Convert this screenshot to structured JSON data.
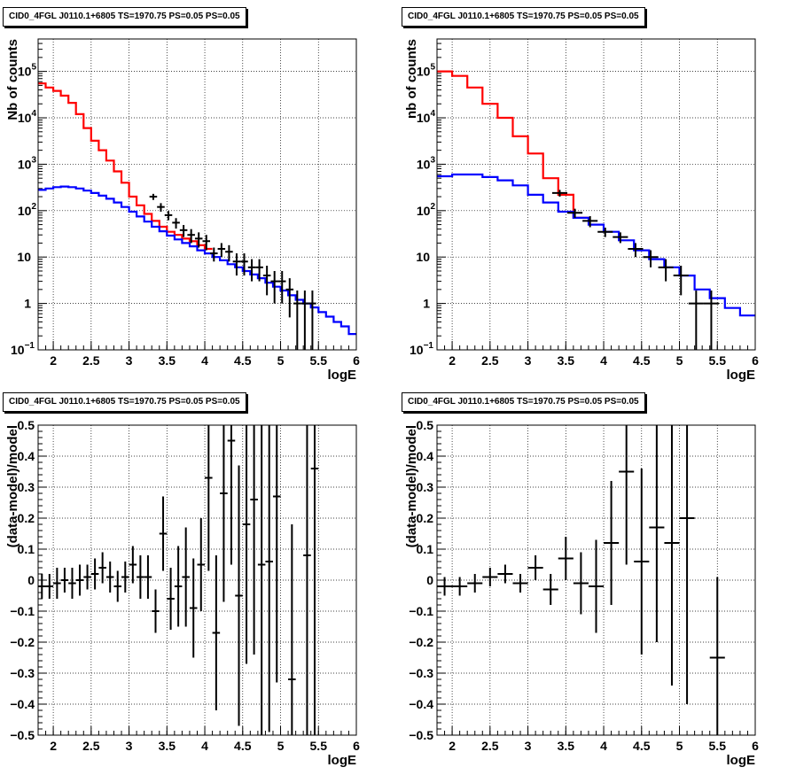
{
  "page": {
    "background": "#ffffff"
  },
  "colors": {
    "data": "#000000",
    "model_total": "#ff0000",
    "model_bkg": "#0000ff",
    "grid": "#000000"
  },
  "chart_data": [
    {
      "type": "line",
      "title": "CID0_4FGL J0110.1+6805 TS=1970.75 PS=0.05 PS=0.05",
      "xlabel": "logE",
      "ylabel": "Nb of counts",
      "yscale": "log",
      "xlim": [
        1.8,
        6.0
      ],
      "ylim": [
        0.1,
        500000
      ],
      "xticks": [
        "2",
        "2.5",
        "3",
        "3.5",
        "4",
        "4.5",
        "5",
        "5.5",
        "6"
      ],
      "yticks": [
        {
          "v": 0.1,
          "base": "10",
          "exp": "−1"
        },
        {
          "v": 1,
          "base": "1",
          "exp": ""
        },
        {
          "v": 10,
          "base": "10",
          "exp": ""
        },
        {
          "v": 100,
          "base": "10",
          "exp": "2"
        },
        {
          "v": 1000,
          "base": "10",
          "exp": "3"
        },
        {
          "v": 10000,
          "base": "10",
          "exp": "4"
        },
        {
          "v": 100000,
          "base": "10",
          "exp": "5"
        }
      ],
      "grid": true,
      "bin_width": 0.1,
      "series": [
        {
          "role": "model_total",
          "x": [
            1.8,
            1.9,
            2.0,
            2.1,
            2.2,
            2.3,
            2.4,
            2.5,
            2.6,
            2.7,
            2.8,
            2.9,
            3.0,
            3.1,
            3.2,
            3.3,
            3.4,
            3.5,
            3.6,
            3.7,
            3.8,
            3.9,
            4.0
          ],
          "values": [
            55000,
            45000,
            38000,
            30000,
            21000,
            12000,
            6000,
            3200,
            2000,
            1200,
            700,
            400,
            200,
            130,
            85,
            60,
            45,
            35,
            30,
            25,
            22,
            18,
            15
          ]
        },
        {
          "role": "model_bkg",
          "x": [
            1.8,
            1.9,
            2.0,
            2.1,
            2.2,
            2.3,
            2.4,
            2.5,
            2.6,
            2.7,
            2.8,
            2.9,
            3.0,
            3.1,
            3.2,
            3.3,
            3.4,
            3.5,
            3.6,
            3.7,
            3.8,
            3.9,
            4.0,
            4.1,
            4.2,
            4.3,
            4.4,
            4.5,
            4.6,
            4.7,
            4.8,
            4.9,
            5.0,
            5.1,
            5.2,
            5.3,
            5.4,
            5.5,
            5.6,
            5.7,
            5.8,
            5.9
          ],
          "values": [
            280,
            300,
            320,
            330,
            320,
            300,
            270,
            240,
            210,
            180,
            150,
            120,
            95,
            75,
            58,
            45,
            36,
            29,
            24,
            20,
            17,
            14,
            12,
            10,
            8.5,
            7,
            6,
            5,
            4.2,
            3.5,
            2.8,
            2.3,
            1.9,
            1.5,
            1.2,
            1.0,
            0.82,
            0.65,
            0.52,
            0.4,
            0.32,
            0.22
          ]
        }
      ],
      "points": {
        "x": [
          3.32,
          3.42,
          3.52,
          3.62,
          3.72,
          3.82,
          3.92,
          4.02,
          4.12,
          4.22,
          4.32,
          4.42,
          4.52,
          4.62,
          4.72,
          4.82,
          4.92,
          5.02,
          5.12,
          5.22,
          5.32,
          5.42
        ],
        "y": [
          200,
          120,
          80,
          55,
          38,
          30,
          25,
          22,
          12,
          15,
          13,
          8,
          8,
          6,
          6,
          4,
          3,
          3,
          2,
          1,
          1,
          1
        ],
        "err_lo": [
          30,
          25,
          18,
          14,
          11,
          10,
          9,
          8,
          4,
          5,
          5,
          4,
          4,
          3,
          3,
          2.5,
          2,
          2,
          1.5,
          0.9,
          0.9,
          0.9
        ],
        "err_hi": [
          30,
          25,
          18,
          14,
          11,
          10,
          9,
          8,
          4,
          5,
          5,
          4,
          4,
          3,
          3,
          2.5,
          2,
          2,
          1.5,
          0.9,
          0.9,
          0.9
        ]
      }
    },
    {
      "type": "line",
      "title": "CID0_4FGL J0110.1+6805 TS=1970.75 PS=0.05 PS=0.05",
      "xlabel": "logE",
      "ylabel": "nb of counts",
      "yscale": "log",
      "xlim": [
        1.8,
        6.0
      ],
      "ylim": [
        0.1,
        500000
      ],
      "xticks": [
        "2",
        "2.5",
        "3",
        "3.5",
        "4",
        "4.5",
        "5",
        "5.5",
        "6"
      ],
      "yticks": [
        {
          "v": 0.1,
          "base": "10",
          "exp": "−1"
        },
        {
          "v": 1,
          "base": "1",
          "exp": ""
        },
        {
          "v": 10,
          "base": "10",
          "exp": ""
        },
        {
          "v": 100,
          "base": "10",
          "exp": "2"
        },
        {
          "v": 1000,
          "base": "10",
          "exp": "3"
        },
        {
          "v": 10000,
          "base": "10",
          "exp": "4"
        },
        {
          "v": 100000,
          "base": "10",
          "exp": "5"
        }
      ],
      "grid": true,
      "bin_width": 0.2,
      "series": [
        {
          "role": "model_total",
          "x": [
            1.8,
            2.0,
            2.2,
            2.4,
            2.6,
            2.8,
            3.0,
            3.2,
            3.4,
            3.6
          ],
          "values": [
            100000,
            80000,
            45000,
            20000,
            10000,
            4000,
            1700,
            500,
            220,
            70
          ]
        },
        {
          "role": "model_bkg",
          "x": [
            1.8,
            2.0,
            2.2,
            2.4,
            2.6,
            2.8,
            3.0,
            3.2,
            3.4,
            3.6,
            3.8,
            4.0,
            4.2,
            4.4,
            4.6,
            4.8,
            5.0,
            5.2,
            5.4,
            5.6,
            5.8
          ],
          "values": [
            550,
            600,
            600,
            530,
            450,
            350,
            220,
            150,
            95,
            70,
            50,
            35,
            23,
            14,
            9,
            6,
            4,
            2,
            1.3,
            0.8,
            0.55
          ]
        }
      ],
      "points": {
        "x": [
          3.42,
          3.62,
          3.82,
          4.02,
          4.22,
          4.42,
          4.62,
          4.82,
          5.02,
          5.22,
          5.42
        ],
        "y": [
          240,
          90,
          60,
          35,
          27,
          15,
          10,
          6,
          4,
          1,
          1
        ],
        "err_lo": [
          40,
          20,
          16,
          8,
          7,
          5,
          4,
          3,
          2.5,
          0.9,
          0.9
        ],
        "err_hi": [
          40,
          20,
          16,
          8,
          7,
          5,
          4,
          3,
          2.5,
          0.9,
          0.9
        ]
      }
    },
    {
      "type": "scatter",
      "title": "CID0_4FGL J0110.1+6805 TS=1970.75 PS=0.05 PS=0.05",
      "xlabel": "logE",
      "ylabel": "(data-model)/model",
      "xlim": [
        1.8,
        6.0
      ],
      "ylim": [
        -0.5,
        0.5
      ],
      "xticks": [
        "2",
        "2.5",
        "3",
        "3.5",
        "4",
        "4.5",
        "5",
        "5.5",
        "6"
      ],
      "yticks": [
        "−0.5",
        "−0.4",
        "−0.3",
        "−0.2",
        "−0.1",
        "0",
        "0.1",
        "0.2",
        "0.3",
        "0.4",
        "0.5"
      ],
      "grid": true,
      "bin_width": 0.1,
      "points": {
        "x": [
          1.85,
          1.95,
          2.05,
          2.15,
          2.25,
          2.35,
          2.45,
          2.55,
          2.65,
          2.75,
          2.85,
          2.95,
          3.05,
          3.15,
          3.25,
          3.35,
          3.45,
          3.55,
          3.65,
          3.75,
          3.85,
          3.95,
          4.05,
          4.15,
          4.25,
          4.35,
          4.45,
          4.55,
          4.65,
          4.75,
          4.85,
          4.95,
          5.05,
          5.15,
          5.25,
          5.35,
          5.45,
          5.55
        ],
        "y": [
          -0.02,
          -0.02,
          -0.01,
          0.0,
          -0.01,
          0.0,
          0.01,
          0.02,
          0.04,
          0.01,
          -0.02,
          0.01,
          0.05,
          0.01,
          0.01,
          -0.1,
          0.15,
          -0.06,
          -0.02,
          0.01,
          -0.09,
          0.05,
          0.33,
          -0.17,
          0.28,
          0.45,
          -0.05,
          0.18,
          0.26,
          0.05,
          0.06,
          0.27,
          0.2,
          -0.32,
          0.0,
          0.08,
          0.36,
          0.0
        ],
        "err_lo": [
          0.04,
          0.04,
          0.05,
          0.04,
          0.05,
          0.05,
          0.04,
          0.05,
          0.05,
          0.05,
          0.05,
          0.05,
          0.06,
          0.07,
          0.07,
          0.07,
          0.12,
          0.1,
          0.13,
          0.16,
          0.16,
          0.15,
          0.3,
          0.25,
          0.35,
          0.4,
          0.42,
          0.45,
          0.5,
          0.6,
          0.55,
          0.6,
          0.6,
          0.5,
          0.5,
          0.58,
          0.9,
          0.5
        ],
        "err_hi": [
          0.04,
          0.04,
          0.05,
          0.04,
          0.05,
          0.05,
          0.04,
          0.05,
          0.05,
          0.05,
          0.05,
          0.05,
          0.06,
          0.07,
          0.07,
          0.07,
          0.12,
          0.1,
          0.13,
          0.16,
          0.16,
          0.15,
          0.3,
          0.25,
          0.35,
          0.4,
          0.42,
          0.45,
          0.5,
          0.6,
          0.55,
          0.6,
          0.6,
          0.5,
          0.5,
          0.58,
          0.9,
          0.5
        ],
        "show": [
          true,
          true,
          true,
          true,
          true,
          true,
          true,
          true,
          true,
          true,
          true,
          true,
          true,
          true,
          true,
          true,
          true,
          true,
          true,
          true,
          true,
          true,
          true,
          true,
          true,
          true,
          true,
          true,
          true,
          true,
          true,
          true,
          false,
          true,
          false,
          true,
          true,
          false
        ]
      }
    },
    {
      "type": "scatter",
      "title": "CID0_4FGL J0110.1+6805 TS=1970.75 PS=0.05 PS=0.05",
      "xlabel": "logE",
      "ylabel": "(data-model)/model",
      "xlim": [
        1.8,
        6.0
      ],
      "ylim": [
        -0.5,
        0.5
      ],
      "xticks": [
        "2",
        "2.5",
        "3",
        "3.5",
        "4",
        "4.5",
        "5",
        "5.5",
        "6"
      ],
      "yticks": [
        "−0.5",
        "−0.4",
        "−0.3",
        "−0.2",
        "−0.1",
        "0",
        "0.1",
        "0.2",
        "0.3",
        "0.4",
        "0.5"
      ],
      "grid": true,
      "bin_width": 0.2,
      "points": {
        "x": [
          1.9,
          2.1,
          2.3,
          2.5,
          2.7,
          2.9,
          3.1,
          3.3,
          3.5,
          3.7,
          3.9,
          4.1,
          4.3,
          4.5,
          4.7,
          4.9,
          5.1,
          5.5
        ],
        "y": [
          -0.02,
          -0.02,
          -0.01,
          0.01,
          0.02,
          -0.01,
          0.04,
          -0.03,
          0.07,
          -0.01,
          -0.02,
          0.12,
          0.35,
          0.06,
          0.17,
          0.12,
          0.2,
          -0.25
        ],
        "err_lo": [
          0.03,
          0.03,
          0.03,
          0.03,
          0.03,
          0.03,
          0.04,
          0.05,
          0.07,
          0.1,
          0.15,
          0.2,
          0.3,
          0.3,
          0.37,
          0.46,
          0.6,
          0.26
        ],
        "err_hi": [
          0.03,
          0.03,
          0.03,
          0.03,
          0.03,
          0.03,
          0.04,
          0.05,
          0.07,
          0.1,
          0.15,
          0.2,
          0.3,
          0.3,
          0.37,
          0.46,
          0.6,
          0.26
        ],
        "show": [
          true,
          true,
          true,
          true,
          true,
          true,
          true,
          true,
          true,
          true,
          true,
          true,
          true,
          true,
          true,
          true,
          true,
          true
        ]
      }
    }
  ]
}
